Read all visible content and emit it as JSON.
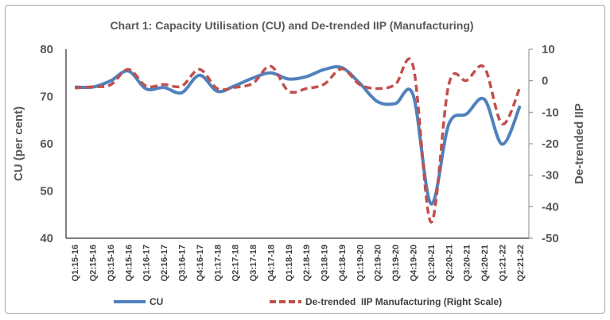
{
  "chart_data": {
    "type": "line",
    "title": "Chart 1: Capacity Utilisation (CU) and De-trended IIP (Manufacturing)",
    "ylabel": "CU (per cent)",
    "y2label": "De-trended IIP",
    "ylim": [
      40,
      80
    ],
    "y2lim": [
      -50,
      10
    ],
    "yticks": [
      40,
      50,
      60,
      70,
      80
    ],
    "y2ticks": [
      -50,
      -40,
      -30,
      -20,
      -10,
      0,
      10
    ],
    "grid": false,
    "legend_position": "bottom",
    "categories": [
      "Q1:15-16",
      "Q2:15-16",
      "Q3:15-16",
      "Q4:15-16",
      "Q1:16-17",
      "Q2:16-17",
      "Q3:16-17",
      "Q4:16-17",
      "Q1:17-18",
      "Q2:17-18",
      "Q3:17-18",
      "Q4:17-18",
      "Q1:18-19",
      "Q2:18-19",
      "Q3:18-19",
      "Q4:18-19",
      "Q1:19-20",
      "Q2:19-20",
      "Q3:19-20",
      "Q4:19-20",
      "Q1:20-21",
      "Q2:20-21",
      "Q3:20-21",
      "Q4:20-21",
      "Q1:21-22",
      "Q2:21-22"
    ],
    "series": [
      {
        "name": "CU",
        "axis": "left",
        "color": "#4f81bd",
        "style": "solid",
        "values": [
          72.0,
          72.0,
          73.3,
          75.4,
          71.6,
          71.9,
          70.8,
          74.5,
          71.1,
          72.3,
          73.9,
          75.0,
          73.7,
          74.2,
          75.7,
          76.1,
          72.8,
          68.9,
          68.5,
          70.3,
          47.3,
          64.1,
          66.3,
          69.4,
          59.9,
          68.0
        ]
      },
      {
        "name": "De-trended  IIP Manufacturing (Right Scale)",
        "axis": "right",
        "color": "#c0504d",
        "style": "dashed",
        "values": [
          -2.3,
          -1.9,
          -1.3,
          3.6,
          -1.7,
          -1.2,
          -1.7,
          3.6,
          -2.5,
          -2.1,
          -0.8,
          4.6,
          -3.3,
          -2.5,
          -1.1,
          3.8,
          -1.2,
          -2.5,
          -1.2,
          4.6,
          -44.9,
          -1.2,
          0.1,
          4.2,
          -13.7,
          -2.1
        ]
      }
    ]
  }
}
